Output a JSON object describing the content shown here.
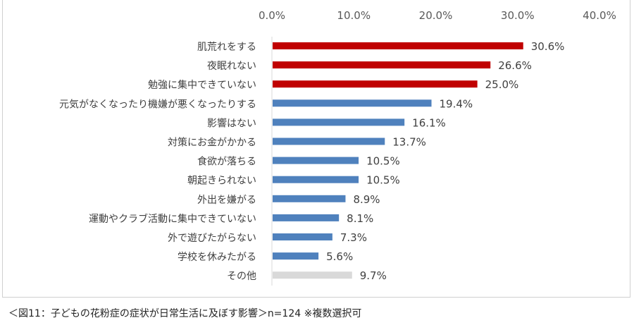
{
  "chart_data": {
    "type": "bar",
    "orientation": "horizontal",
    "categories": [
      "肌荒れをする",
      "夜眠れない",
      "勉強に集中できていない",
      "元気がなくなったり機嫌が悪くなったりする",
      "影響はない",
      "対策にお金がかかる",
      "食欲が落ちる",
      "朝起きられない",
      "外出を嫌がる",
      "運動やクラブ活動に集中できていない",
      "外で遊びたがらない",
      "学校を休みたがる",
      "その他"
    ],
    "values": [
      30.6,
      26.6,
      25.0,
      19.4,
      16.1,
      13.7,
      10.5,
      10.5,
      8.9,
      8.1,
      7.3,
      5.6,
      9.7
    ],
    "data_labels": [
      "30.6%",
      "26.6%",
      "25.0%",
      "19.4%",
      "16.1%",
      "13.7%",
      "10.5%",
      "10.5%",
      "8.9%",
      "8.1%",
      "7.3%",
      "5.6%",
      "9.7%"
    ],
    "bar_colors": [
      "#c00000",
      "#c00000",
      "#c00000",
      "#4f81bd",
      "#4f81bd",
      "#4f81bd",
      "#4f81bd",
      "#4f81bd",
      "#4f81bd",
      "#4f81bd",
      "#4f81bd",
      "#4f81bd",
      "#d9d9d9"
    ],
    "xlim": [
      0,
      40
    ],
    "xticks": [
      "0.0%",
      "10.0%",
      "20.0%",
      "30.0%",
      "40.0%"
    ],
    "xaxis_position": "top",
    "grid": false,
    "xlabel": "",
    "ylabel": ""
  },
  "caption": "＜図11：子どもの花粉症の症状が日常生活に及ぼす影響＞n=124 ※複数選択可"
}
